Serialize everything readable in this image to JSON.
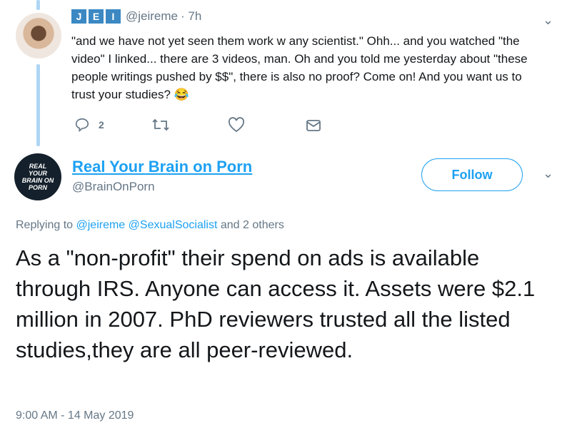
{
  "tweet1": {
    "badges": [
      "J",
      "E",
      "I"
    ],
    "handle": "@jeireme",
    "time": "· 7h",
    "text": "\"and we have not yet seen them work w any scientist.\" Ohh... and you watched \"the video\" I linked... there are 3 videos, man. Oh and you told me yesterday about \"these people writings pushed by $$\", there is also no proof? Come on! And you want us to trust your studies? 😂",
    "reply_count": "2"
  },
  "tweet2": {
    "avatar_text": "REAL YOUR BRAIN ON PORN",
    "name": "Real Your Brain on Porn",
    "handle": "@BrainOnPorn",
    "follow_label": "Follow",
    "replying_prefix": "Replying to",
    "replying_users": [
      "@jeireme",
      "@SexualSocialist"
    ],
    "replying_suffix": "and 2 others",
    "text": "As a \"non-profit\" their spend on ads is available through IRS. Anyone can access it. Assets were $2.1 million in 2007. PhD reviewers trusted all the listed studies,they are all peer-reviewed.",
    "timestamp": "9:00 AM - 14 May 2019"
  },
  "colors": {
    "accent": "#1da1f2",
    "muted": "#657786",
    "thread": "#aed6f5"
  }
}
